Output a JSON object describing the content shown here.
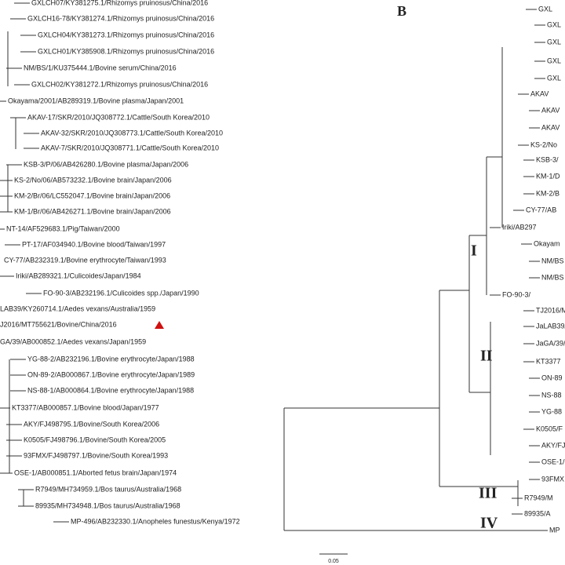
{
  "left_leaves": [
    "GXLCH07/KY381275.1/Rhizomys pruinosus/China/2016",
    "GXLCH16-78/KY381274.1/Rhizomys pruinosus/China/2016",
    "GXLCH04/KY381273.1/Rhizomys pruinosus/China/2016",
    "GXLCH01/KY385908.1/Rhizomys pruinosus/China/2016",
    "NM/BS/1/KU375444.1/Bovine serum/China/2016",
    "GXLCH02/KY381272.1/Rhizomys pruinosus/China/2016",
    "Okayama/2001/AB289319.1/Bovine plasma/Japan/2001",
    "AKAV-17/SKR/2010/JQ308772.1/Cattle/South Korea/2010",
    "AKAV-32/SKR/2010/JQ308773.1/Cattle/South Korea/2010",
    "AKAV-7/SKR/2010/JQ308771.1/Cattle/South Korea/2010",
    "KSB-3/P/06/AB426280.1/Bovine plasma/Japan/2006",
    "KS-2/No/06/AB573232.1/Bovine brain/Japan/2006",
    "KM-2/Br/06/LC552047.1/Bovine brain/Japan/2006",
    "KM-1/Br/06/AB426271.1/Bovine brain/Japan/2006",
    "NT-14/AF529683.1/Pig/Taiwan/2000",
    "PT-17/AF034940.1/Bovine blood/Taiwan/1997",
    "CY-77/AB232319.1/Bovine erythrocyte/Taiwan/1993",
    "Iriki/AB289321.1/Culicoides/Japan/1984",
    "FO-90-3/AB232196.1/Culicoides spp./Japan/1990",
    "LAB39/KY260714.1/Aedes vexans/Australia/1959",
    "J2016/MT755621/Bovine/China/2016",
    "GA/39/AB000852.1/Aedes vexans/Japan/1959",
    "YG-88-2/AB232196.1/Bovine erythrocyte/Japan/1988",
    "ON-89-2/AB000867.1/Bovine erythrocyte/Japan/1989",
    "NS-88-1/AB000864.1/Bovine erythrocyte/Japan/1988",
    "KT3377/AB000857.1/Bovine blood/Japan/1977",
    "AKY/FJ498795.1/Bovine/South Korea/2006",
    "K0505/FJ498796.1/Bovine/South Korea/2005",
    "93FMX/FJ498797.1/Bovine/South Korea/1993",
    "OSE-1/AB000851.1/Aborted fetus brain/Japan/1974",
    "R7949/MH734959.1/Bos taurus/Australia/1968",
    "89935/MH734948.1/Bos taurus/Australia/1968",
    "MP-496/AB232330.1/Anopheles funestus/Kenya/1972"
  ],
  "panel_label": "B",
  "right_leaves": [
    "GXL",
    "GXL",
    "GXL",
    "GXL",
    "GXL",
    "AKAV",
    "AKAV",
    "AKAV",
    "KS-2/No",
    "KSB-3/",
    "KM-1/D",
    "KM-2/B",
    "CY-77/AB",
    "Iriki/AB297",
    "Okayam",
    "NM/BS",
    "NM/BS",
    "FO-90-3/",
    "TJ2016/M",
    "JaLAB39/",
    "JaGA/39/",
    "KT3377",
    "ON-89",
    "NS-88",
    "YG-88",
    "K0505/F",
    "AKY/FJ",
    "OSE-1/",
    "93FMX",
    "R7949/M",
    "89935/A",
    "MP"
  ],
  "clades": [
    "I",
    "II",
    "III",
    "IV"
  ],
  "scale_label": "0.05"
}
